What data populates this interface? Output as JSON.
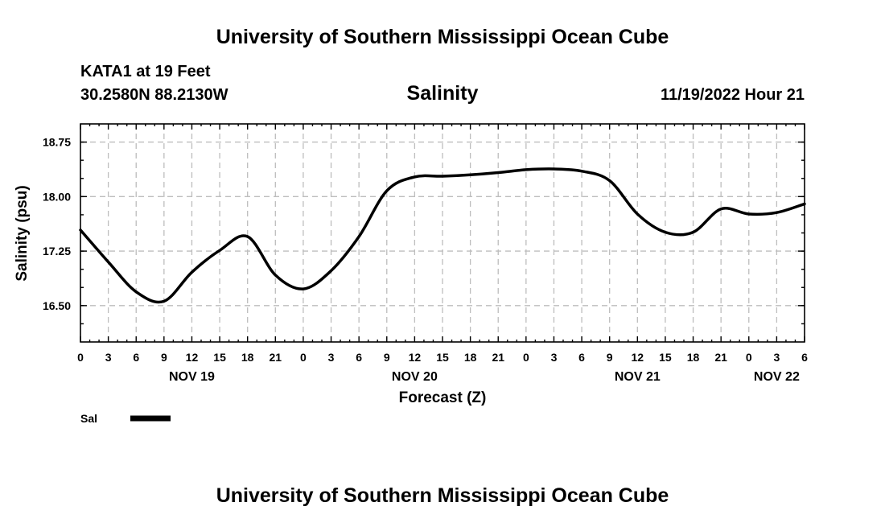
{
  "header": {
    "title": "University of Southern Mississippi Ocean Cube",
    "station": "KATA1 at 19 Feet",
    "location": "30.2580N  88.2130W",
    "variable": "Salinity",
    "timestamp": "11/19/2022 Hour 21"
  },
  "footer": {
    "title": "University of Southern Mississippi Ocean Cube"
  },
  "chart_data": {
    "type": "line",
    "title": "Salinity",
    "xlabel": "Forecast (Z)",
    "ylabel": "Salinity (psu)",
    "ylim": [
      16.0,
      19.0
    ],
    "xlim": [
      0,
      78
    ],
    "x_unit": "hours from 00Z NOV 19",
    "grid": true,
    "y_ticks": [
      "18.75",
      "18.00",
      "17.25",
      "16.50"
    ],
    "y_tick_values": [
      18.75,
      18.0,
      17.25,
      16.5
    ],
    "x_ticks": [
      "0",
      "3",
      "6",
      "9",
      "12",
      "15",
      "18",
      "21",
      "0",
      "3",
      "6",
      "9",
      "12",
      "15",
      "18",
      "21",
      "0",
      "3",
      "6",
      "9",
      "12",
      "15",
      "18",
      "21",
      "0",
      "3",
      "6"
    ],
    "x_tick_values": [
      0,
      3,
      6,
      9,
      12,
      15,
      18,
      21,
      24,
      27,
      30,
      33,
      36,
      39,
      42,
      45,
      48,
      51,
      54,
      57,
      60,
      63,
      66,
      69,
      72,
      75,
      78
    ],
    "date_labels": [
      {
        "text": "NOV 19",
        "x": 12
      },
      {
        "text": "NOV 20",
        "x": 36
      },
      {
        "text": "NOV 21",
        "x": 60
      },
      {
        "text": "NOV 22",
        "x": 75
      }
    ],
    "legend": {
      "label": "Sal",
      "position": "bottom-left"
    },
    "series": [
      {
        "name": "Sal",
        "color": "#000000",
        "x": [
          0,
          3,
          6,
          9,
          12,
          15,
          18,
          21,
          24,
          27,
          30,
          33,
          36,
          39,
          42,
          45,
          48,
          51,
          54,
          57,
          60,
          63,
          66,
          69,
          72,
          75,
          78
        ],
        "values": [
          17.54,
          17.1,
          16.69,
          16.56,
          16.96,
          17.26,
          17.45,
          16.92,
          16.73,
          16.98,
          17.45,
          18.08,
          18.27,
          18.28,
          18.3,
          18.33,
          18.37,
          18.38,
          18.35,
          18.22,
          17.76,
          17.51,
          17.51,
          17.83,
          17.76,
          17.78,
          17.9
        ]
      }
    ]
  }
}
